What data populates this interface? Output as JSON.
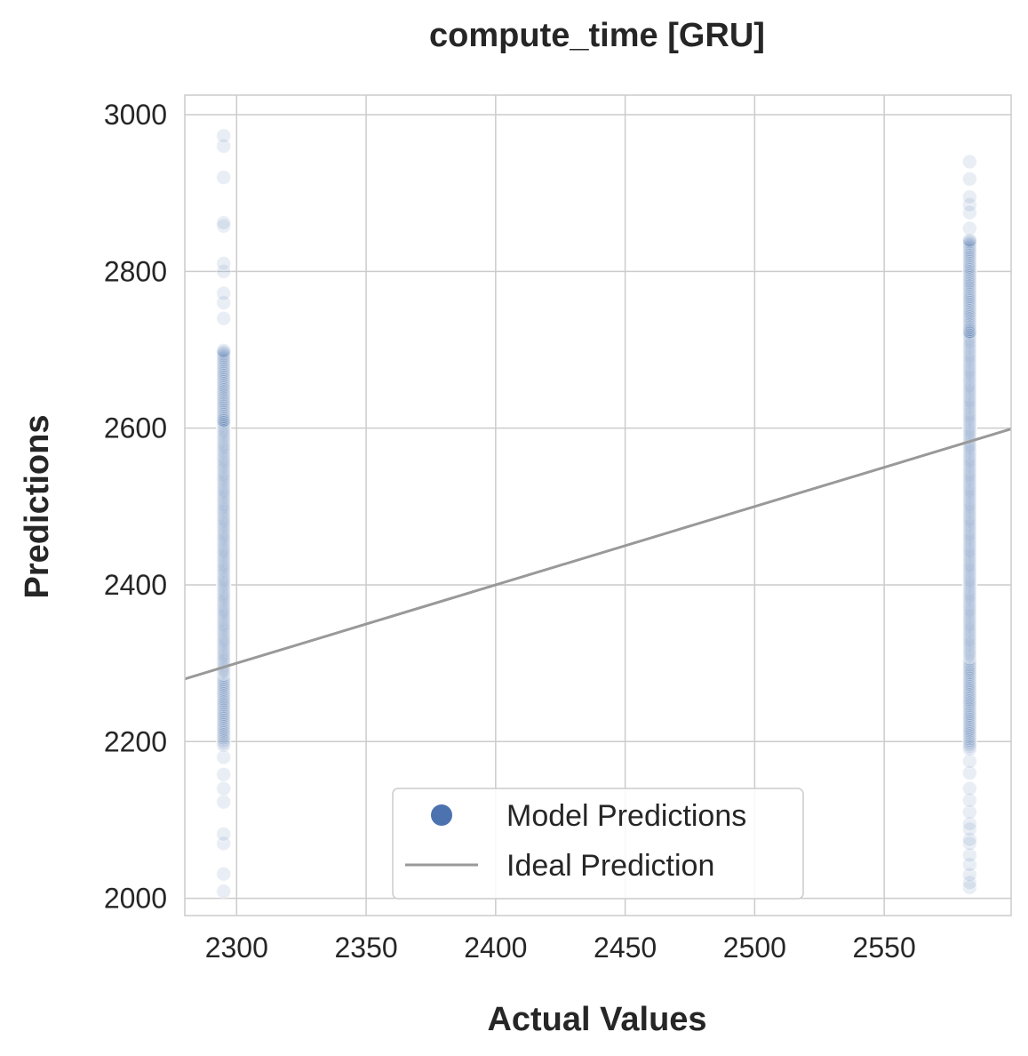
{
  "chart_data": {
    "type": "scatter",
    "title": "compute_time [GRU]",
    "xlabel": "Actual Values",
    "ylabel": "Predictions",
    "xlim": [
      2280,
      2599
    ],
    "ylim": [
      1978,
      3025
    ],
    "xticks": [
      2300,
      2350,
      2400,
      2450,
      2500,
      2550
    ],
    "yticks": [
      2000,
      2200,
      2400,
      2600,
      2800,
      3000
    ],
    "grid": true,
    "legend_placement": "lower-center",
    "series": [
      {
        "name": "Model Predictions",
        "kind": "scatter",
        "color": "#4c72b0",
        "clusters": [
          {
            "x": 2295,
            "dense_y_range": [
              2195,
              2700
            ],
            "sparse_y": [
              2009,
              2031,
              2070,
              2082,
              2123,
              2140,
              2158,
              2180,
              2740,
              2760,
              2772,
              2800,
              2810,
              2858,
              2862,
              2920,
              2960,
              2973
            ]
          },
          {
            "x": 2583,
            "dense_y_range": [
              2190,
              2840
            ],
            "sparse_y": [
              2014,
              2020,
              2030,
              2043,
              2055,
              2070,
              2075,
              2088,
              2095,
              2110,
              2125,
              2140,
              2160,
              2175,
              2855,
              2875,
              2885,
              2895,
              2918,
              2940
            ]
          }
        ]
      },
      {
        "name": "Ideal Prediction",
        "kind": "line",
        "color": "#999999",
        "x": [
          2280,
          2599
        ],
        "y": [
          2280,
          2599
        ]
      }
    ]
  }
}
